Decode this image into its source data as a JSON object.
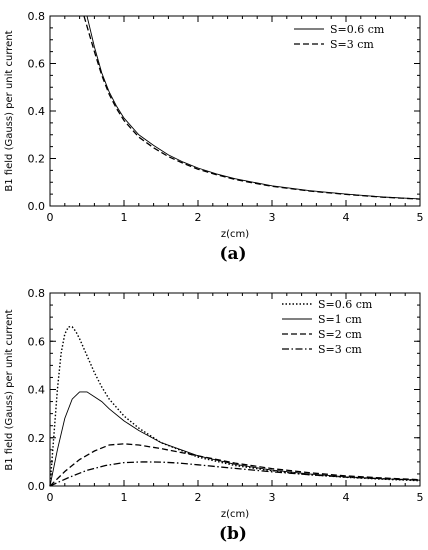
{
  "chart_data": [
    {
      "type": "line",
      "caption": "(a)",
      "xlabel": "z(cm)",
      "ylabel": "B1 field (Gauss) per unit current",
      "xlim": [
        0,
        5
      ],
      "ylim": [
        0,
        0.8
      ],
      "xticks": [
        "0",
        "1",
        "2",
        "3",
        "4",
        "5"
      ],
      "yticks": [
        "0.0",
        "0.2",
        "0.4",
        "0.6",
        "0.8"
      ],
      "legend": "top-right",
      "series": [
        {
          "name": "S=0.6 cm",
          "style": "solid",
          "x": [
            0.5,
            0.6,
            0.7,
            0.8,
            0.9,
            1.0,
            1.2,
            1.4,
            1.6,
            1.8,
            2.0,
            2.25,
            2.5,
            2.75,
            3.0,
            3.5,
            4.0,
            4.5,
            5.0
          ],
          "y": [
            0.8,
            0.67,
            0.56,
            0.48,
            0.42,
            0.37,
            0.3,
            0.255,
            0.215,
            0.185,
            0.16,
            0.135,
            0.115,
            0.1,
            0.085,
            0.065,
            0.05,
            0.038,
            0.03
          ]
        },
        {
          "name": "S=3 cm",
          "style": "dashed",
          "x": [
            0.46,
            0.6,
            0.7,
            0.8,
            0.9,
            1.0,
            1.2,
            1.4,
            1.6,
            1.8,
            2.0,
            2.25,
            2.5,
            2.75,
            3.0,
            3.5,
            4.0,
            4.5,
            5.0
          ],
          "y": [
            0.8,
            0.65,
            0.55,
            0.47,
            0.41,
            0.36,
            0.29,
            0.245,
            0.208,
            0.18,
            0.155,
            0.132,
            0.112,
            0.097,
            0.083,
            0.063,
            0.049,
            0.037,
            0.029
          ]
        }
      ]
    },
    {
      "type": "line",
      "caption": "(b)",
      "xlabel": "z(cm)",
      "ylabel": "B1 field (Gauss) per unit current",
      "xlim": [
        0,
        5
      ],
      "ylim": [
        0,
        0.8
      ],
      "xticks": [
        "0",
        "1",
        "2",
        "3",
        "4",
        "5"
      ],
      "yticks": [
        "0.0",
        "0.2",
        "0.4",
        "0.6",
        "0.8"
      ],
      "legend": "top-right",
      "series": [
        {
          "name": "S=0.6 cm",
          "style": "dotted",
          "x": [
            0,
            0.05,
            0.1,
            0.15,
            0.2,
            0.25,
            0.3,
            0.35,
            0.4,
            0.5,
            0.6,
            0.7,
            0.8,
            1.0,
            1.2,
            1.5,
            2.0,
            2.5,
            3.0,
            3.5,
            4.0,
            4.5,
            5.0
          ],
          "y": [
            0,
            0.2,
            0.4,
            0.55,
            0.63,
            0.66,
            0.66,
            0.64,
            0.61,
            0.54,
            0.47,
            0.41,
            0.36,
            0.29,
            0.24,
            0.18,
            0.12,
            0.085,
            0.063,
            0.047,
            0.036,
            0.028,
            0.022
          ]
        },
        {
          "name": "S=1 cm",
          "style": "solid",
          "x": [
            0,
            0.1,
            0.2,
            0.3,
            0.4,
            0.5,
            0.6,
            0.7,
            0.8,
            1.0,
            1.2,
            1.5,
            2.0,
            2.5,
            3.0,
            3.5,
            4.0,
            4.5,
            5.0
          ],
          "y": [
            0,
            0.15,
            0.28,
            0.36,
            0.39,
            0.39,
            0.37,
            0.35,
            0.32,
            0.27,
            0.23,
            0.18,
            0.125,
            0.09,
            0.066,
            0.05,
            0.038,
            0.03,
            0.024
          ]
        },
        {
          "name": "S=2 cm",
          "style": "dashed",
          "x": [
            0,
            0.2,
            0.4,
            0.6,
            0.8,
            1.0,
            1.2,
            1.5,
            2.0,
            2.5,
            3.0,
            3.5,
            4.0,
            4.5,
            5.0
          ],
          "y": [
            0,
            0.06,
            0.11,
            0.145,
            0.17,
            0.175,
            0.17,
            0.155,
            0.125,
            0.095,
            0.072,
            0.055,
            0.042,
            0.033,
            0.026
          ]
        },
        {
          "name": "S=3 cm",
          "style": "dashdot",
          "x": [
            0,
            0.25,
            0.5,
            0.75,
            1.0,
            1.25,
            1.5,
            1.75,
            2.0,
            2.5,
            3.0,
            3.5,
            4.0,
            4.5,
            5.0
          ],
          "y": [
            0,
            0.035,
            0.065,
            0.085,
            0.097,
            0.1,
            0.099,
            0.095,
            0.088,
            0.073,
            0.059,
            0.047,
            0.037,
            0.03,
            0.024
          ]
        }
      ]
    }
  ]
}
